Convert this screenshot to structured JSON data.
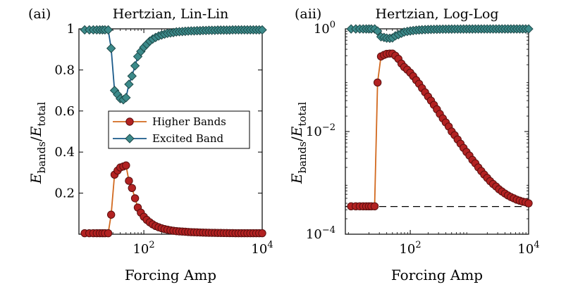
{
  "colors": {
    "higher": "#d2691e",
    "higher_marker": "#b22222",
    "higher_edge": "#5a0f0f",
    "excited": "#1a5a8a",
    "excited_marker": "#3c8a8a",
    "excited_edge": "#1e4a4a",
    "baseline": "#000000"
  },
  "chart_data": [
    {
      "type": "line",
      "panel_label": "(ai)",
      "title": "Hertzian, Lin-Lin",
      "xlabel": "Forcing Amp",
      "ylabel": "E bands / E total",
      "xscale": "log",
      "yscale": "linear",
      "xlim": [
        8,
        10000
      ],
      "ylim": [
        0,
        1
      ],
      "xticks": [
        {
          "value": 100,
          "base": "10",
          "exp": "2"
        },
        {
          "value": 10000,
          "base": "10",
          "exp": "4"
        }
      ],
      "yticks": [
        {
          "value": 0.2,
          "label": "0.2"
        },
        {
          "value": 0.4,
          "label": "0.4"
        },
        {
          "value": 0.6,
          "label": "0.6"
        },
        {
          "value": 0.8,
          "label": "0.8"
        },
        {
          "value": 1,
          "label": "1"
        }
      ],
      "legend": {
        "placement": "center-right",
        "entries": [
          "Higher Bands",
          "Excited Band"
        ]
      },
      "grid": false,
      "series": [
        {
          "name": "Higher Bands",
          "key": "higher",
          "x": [
            10,
            12,
            14,
            16,
            18,
            20,
            22,
            25,
            28,
            32,
            36,
            40,
            45,
            50,
            56,
            63,
            71,
            79,
            89,
            100,
            112,
            126,
            141,
            158,
            178,
            200,
            224,
            251,
            282,
            316,
            355,
            398,
            447,
            501,
            562,
            631,
            708,
            794,
            891,
            1000,
            1122,
            1259,
            1413,
            1585,
            1778,
            1995,
            2239,
            2512,
            2818,
            3162,
            3548,
            3981,
            4467,
            5012,
            5623,
            6310,
            7079,
            7943,
            8913,
            10000
          ],
          "y": [
            0.005,
            0.005,
            0.005,
            0.005,
            0.005,
            0.005,
            0.005,
            0.005,
            0.095,
            0.29,
            0.31,
            0.325,
            0.33,
            0.335,
            0.26,
            0.225,
            0.175,
            0.13,
            0.105,
            0.085,
            0.07,
            0.058,
            0.048,
            0.04,
            0.034,
            0.029,
            0.025,
            0.022,
            0.019,
            0.017,
            0.015,
            0.014,
            0.013,
            0.012,
            0.011,
            0.01,
            0.0095,
            0.009,
            0.0085,
            0.008,
            0.0075,
            0.007,
            0.0068,
            0.0065,
            0.0062,
            0.006,
            0.0058,
            0.0056,
            0.0054,
            0.0052,
            0.005,
            0.005,
            0.005,
            0.005,
            0.005,
            0.005,
            0.005,
            0.005,
            0.005,
            0.005
          ]
        },
        {
          "name": "Excited Band",
          "key": "excited",
          "x": [
            10,
            12,
            14,
            16,
            18,
            20,
            22,
            25,
            28,
            32,
            36,
            40,
            45,
            50,
            56,
            63,
            71,
            79,
            89,
            100,
            112,
            126,
            141,
            158,
            178,
            200,
            224,
            251,
            282,
            316,
            355,
            398,
            447,
            501,
            562,
            631,
            708,
            794,
            891,
            1000,
            1122,
            1259,
            1413,
            1585,
            1778,
            1995,
            2239,
            2512,
            2818,
            3162,
            3548,
            3981,
            4467,
            5012,
            5623,
            6310,
            7079,
            7943,
            8913,
            10000
          ],
          "y": [
            0.995,
            0.995,
            0.995,
            0.995,
            0.995,
            0.995,
            0.995,
            0.995,
            0.905,
            0.7,
            0.68,
            0.66,
            0.655,
            0.665,
            0.73,
            0.77,
            0.82,
            0.865,
            0.89,
            0.91,
            0.925,
            0.94,
            0.95,
            0.958,
            0.965,
            0.97,
            0.974,
            0.978,
            0.98,
            0.982,
            0.985,
            0.986,
            0.987,
            0.988,
            0.989,
            0.99,
            0.99,
            0.991,
            0.991,
            0.992,
            0.992,
            0.993,
            0.993,
            0.993,
            0.994,
            0.994,
            0.994,
            0.994,
            0.994,
            0.995,
            0.995,
            0.995,
            0.995,
            0.995,
            0.995,
            0.995,
            0.995,
            0.995,
            0.995,
            0.995
          ]
        }
      ]
    },
    {
      "type": "line",
      "panel_label": "(aii)",
      "title": "Hertzian, Log-Log",
      "xlabel": "Forcing Amp",
      "ylabel": "E bands / E total",
      "xscale": "log",
      "yscale": "log",
      "xlim": [
        8,
        10000
      ],
      "ylim": [
        0.0001,
        1
      ],
      "xticks": [
        {
          "value": 100,
          "base": "10",
          "exp": "2"
        },
        {
          "value": 10000,
          "base": "10",
          "exp": "4"
        }
      ],
      "yticks": [
        {
          "value": 0.0001,
          "base": "10",
          "exp": "−4"
        },
        {
          "value": 0.01,
          "base": "10",
          "exp": "−2"
        },
        {
          "value": 1,
          "base": "10",
          "exp": "0"
        }
      ],
      "reference_line": {
        "y": 0.000346,
        "style": "dashed"
      },
      "grid": false,
      "series": [
        {
          "name": "Higher Bands",
          "key": "higher",
          "x": [
            10,
            12,
            14,
            16,
            18,
            20,
            22,
            25,
            28,
            32,
            36,
            40,
            45,
            50,
            56,
            63,
            71,
            79,
            89,
            100,
            112,
            126,
            141,
            158,
            178,
            200,
            224,
            251,
            282,
            316,
            355,
            398,
            447,
            501,
            562,
            631,
            708,
            794,
            891,
            1000,
            1122,
            1259,
            1413,
            1585,
            1778,
            1995,
            2239,
            2512,
            2818,
            3162,
            3548,
            3981,
            4467,
            5012,
            5623,
            6310,
            7079,
            7943,
            8913,
            10000
          ],
          "y": [
            0.00035,
            0.00035,
            0.00035,
            0.00035,
            0.00035,
            0.00035,
            0.00035,
            0.00035,
            0.09,
            0.29,
            0.31,
            0.325,
            0.33,
            0.33,
            0.3,
            0.26,
            0.21,
            0.18,
            0.16,
            0.14,
            0.12,
            0.1,
            0.085,
            0.07,
            0.058,
            0.048,
            0.04,
            0.033,
            0.027,
            0.022,
            0.018,
            0.015,
            0.0125,
            0.01,
            0.0085,
            0.007,
            0.0058,
            0.0048,
            0.004,
            0.0034,
            0.0028,
            0.0024,
            0.002,
            0.0017,
            0.00145,
            0.00125,
            0.00108,
            0.00095,
            0.00085,
            0.00075,
            0.00068,
            0.00062,
            0.00057,
            0.00053,
            0.0005,
            0.00047,
            0.00045,
            0.00043,
            0.00042,
            0.0004
          ]
        },
        {
          "name": "Excited Band",
          "key": "excited",
          "x": [
            10,
            12,
            14,
            16,
            18,
            20,
            22,
            25,
            28,
            32,
            36,
            40,
            45,
            50,
            56,
            63,
            71,
            79,
            89,
            100,
            112,
            126,
            141,
            158,
            178,
            200,
            224,
            251,
            282,
            316,
            355,
            398,
            447,
            501,
            562,
            631,
            708,
            794,
            891,
            1000,
            1122,
            1259,
            1413,
            1585,
            1778,
            1995,
            2239,
            2512,
            2818,
            3162,
            3548,
            3981,
            4467,
            5012,
            5623,
            6310,
            7079,
            7943,
            8913,
            10000
          ],
          "y": [
            0.995,
            0.995,
            0.995,
            0.995,
            0.995,
            0.995,
            0.995,
            0.995,
            0.905,
            0.7,
            0.68,
            0.66,
            0.655,
            0.665,
            0.73,
            0.77,
            0.82,
            0.865,
            0.89,
            0.91,
            0.925,
            0.94,
            0.95,
            0.958,
            0.965,
            0.97,
            0.974,
            0.978,
            0.98,
            0.982,
            0.985,
            0.986,
            0.987,
            0.988,
            0.989,
            0.99,
            0.99,
            0.991,
            0.991,
            0.992,
            0.992,
            0.993,
            0.993,
            0.993,
            0.994,
            0.994,
            0.994,
            0.994,
            0.994,
            0.995,
            0.995,
            0.995,
            0.995,
            0.995,
            0.995,
            0.995,
            0.995,
            0.995,
            0.995,
            0.995
          ]
        }
      ]
    }
  ]
}
